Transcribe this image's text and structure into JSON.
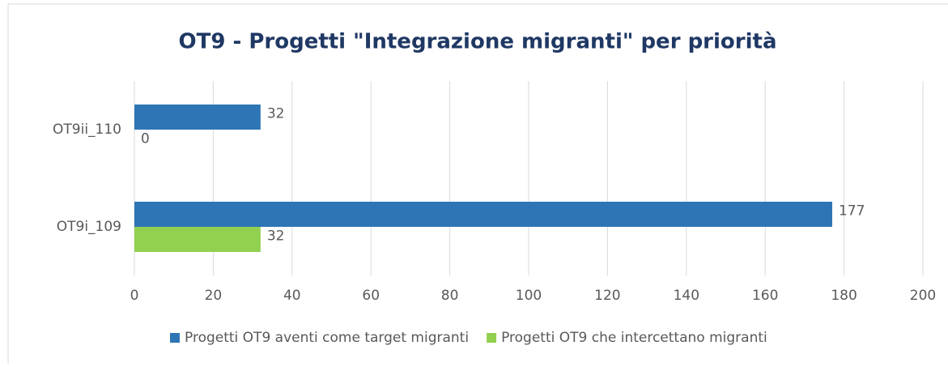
{
  "chart_data": {
    "type": "bar",
    "orientation": "horizontal",
    "title": "OT9 - Progetti \"Integrazione migranti\" per priorità",
    "categories": [
      "OT9ii_110",
      "OT9i_109"
    ],
    "series": [
      {
        "name": "Progetti OT9 aventi come target migranti",
        "color": "#2e75b6",
        "values": [
          32,
          177
        ]
      },
      {
        "name": "Progetti OT9 che intercettano migranti",
        "color": "#92d050",
        "values": [
          0,
          32
        ]
      }
    ],
    "xlim": [
      0,
      200
    ],
    "xticks": [
      0,
      20,
      40,
      60,
      80,
      100,
      120,
      140,
      160,
      180,
      200
    ],
    "grid": true,
    "legend": "bottom"
  }
}
